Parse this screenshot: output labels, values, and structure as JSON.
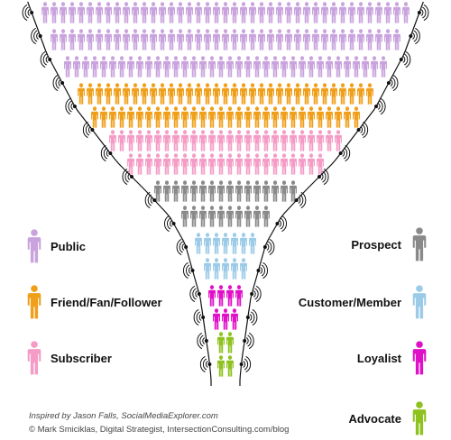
{
  "colors": {
    "public": "#c9a3dd",
    "fan": "#ef9f1a",
    "subscriber": "#f49cc6",
    "prospect": "#8a8a8a",
    "customer": "#9ccbe8",
    "loyalist": "#e010c8",
    "advocate": "#8ec21e",
    "funnel_line": "#111111"
  },
  "icons": {
    "person": "person-icon",
    "speech_waves": "speech-waves-icon"
  },
  "legend": {
    "public": "Public",
    "fan": "Friend/Fan/Follower",
    "subscriber": "Subscriber",
    "prospect": "Prospect",
    "customer": "Customer/Member",
    "loyalist": "Loyalist",
    "advocate": "Advocate"
  },
  "credits": {
    "inspired": "Inspired by Jason Falls, SocialMediaExplorer.com",
    "copyright": "© Mark Smiciklas, Digital Strategist, IntersectionConsulting.com/blog"
  }
}
